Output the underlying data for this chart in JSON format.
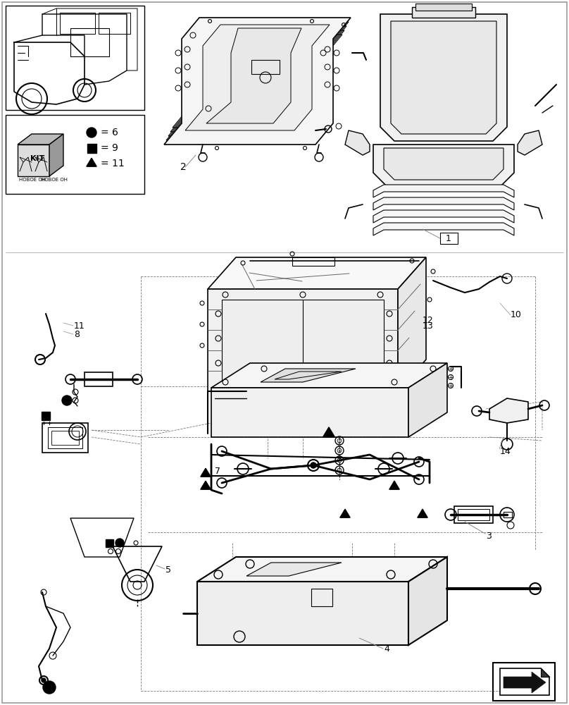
{
  "bg_color": "#ffffff",
  "lc": "#000000",
  "gray": "#aaaaaa",
  "kit_circle": "6",
  "kit_square": "9",
  "kit_triangle": "11"
}
